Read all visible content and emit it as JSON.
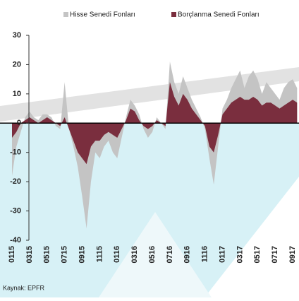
{
  "chart_data": {
    "type": "area",
    "categories": [
      "0115",
      null,
      null,
      null,
      "0315",
      null,
      null,
      null,
      "0515",
      null,
      null,
      null,
      "0715",
      null,
      null,
      null,
      "0915",
      null,
      null,
      null,
      "1115",
      null,
      null,
      null,
      "0116",
      null,
      null,
      null,
      "0316",
      null,
      null,
      null,
      "0516",
      null,
      null,
      null,
      "0716",
      null,
      null,
      null,
      "0916",
      null,
      null,
      null,
      "1116",
      null,
      null,
      null,
      "0117",
      null,
      null,
      null,
      "0317",
      null,
      null,
      null,
      "0517",
      null,
      null,
      null,
      "0717",
      null,
      null,
      null,
      "0917",
      null
    ],
    "series": [
      {
        "name": "Hisse Senedi Fonları",
        "color": "#c4c4c4",
        "values": [
          -18,
          -8,
          -3,
          2,
          4,
          2,
          1,
          3,
          3,
          2,
          -1,
          -2,
          14,
          -2,
          -8,
          -15,
          -25,
          -36,
          -20,
          -10,
          -12,
          -8,
          -6,
          -10,
          -12,
          -5,
          2,
          8,
          6,
          3,
          -2,
          -5,
          -3,
          2,
          0,
          -2,
          21,
          14,
          10,
          16,
          12,
          8,
          5,
          2,
          -2,
          -12,
          -21,
          -8,
          5,
          8,
          12,
          15,
          18,
          12,
          16,
          18,
          15,
          10,
          14,
          12,
          10,
          8,
          12,
          14,
          15,
          12
        ]
      },
      {
        "name": "Borçlanma Senedi Fonları",
        "color": "#7a2e3e",
        "values": [
          -5,
          -3,
          0,
          1,
          2,
          1,
          0,
          1,
          2,
          1,
          0,
          -1,
          2,
          -2,
          -6,
          -10,
          -12,
          -14,
          -8,
          -6,
          -6,
          -4,
          -3,
          -4,
          -5,
          -2,
          1,
          5,
          4,
          1,
          -1,
          -2,
          -1,
          1,
          0,
          -1,
          14,
          9,
          6,
          10,
          8,
          5,
          3,
          1,
          -1,
          -8,
          -10,
          -4,
          3,
          5,
          7,
          8,
          9,
          8,
          8,
          9,
          8,
          6,
          7,
          7,
          6,
          5,
          6,
          7,
          8,
          7
        ]
      }
    ],
    "ylim": [
      -40,
      30
    ],
    "yticks": [
      -40,
      -30,
      -20,
      -10,
      0,
      10,
      20,
      30
    ],
    "source": "Kaynak: EPFR"
  }
}
